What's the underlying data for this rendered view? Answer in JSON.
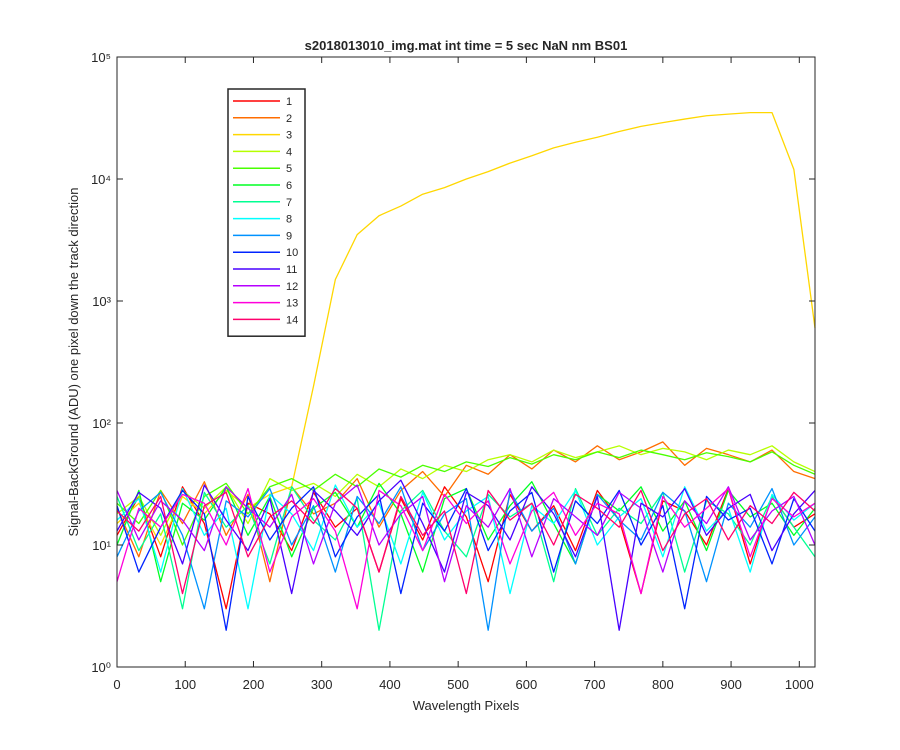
{
  "chart_data": {
    "type": "line",
    "title": "s2018013010_img.mat int time = 5 sec  NaN nm BS01",
    "x_label": "Wavelength Pixels",
    "y_label": "Signal-BackGround (ADU) one pixel down the track direction",
    "y_scale": "log",
    "xlim": [
      0,
      1023
    ],
    "ylim": [
      1,
      100000
    ],
    "xticks": [
      0,
      100,
      200,
      300,
      400,
      500,
      600,
      700,
      800,
      900,
      1000
    ],
    "yticks": [
      {
        "value": 1,
        "label": "10⁰"
      },
      {
        "value": 10,
        "label": "10¹"
      },
      {
        "value": 100,
        "label": "10²"
      },
      {
        "value": 1000,
        "label": "10³"
      },
      {
        "value": 10000,
        "label": "10⁴"
      },
      {
        "value": 100000,
        "label": "10⁵"
      }
    ],
    "legend": "upper left",
    "x": [
      0,
      32,
      64,
      96,
      128,
      160,
      192,
      224,
      256,
      288,
      320,
      352,
      384,
      416,
      448,
      480,
      512,
      544,
      576,
      608,
      640,
      672,
      704,
      736,
      768,
      800,
      832,
      864,
      896,
      928,
      960,
      992,
      1023
    ],
    "series": [
      {
        "name": "1",
        "color": "#ff0000",
        "values": [
          12,
          25,
          8,
          30,
          15,
          3,
          22,
          18,
          9,
          27,
          14,
          20,
          6,
          24,
          11,
          30,
          17,
          5,
          26,
          13,
          21,
          9,
          28,
          16,
          4,
          23,
          19,
          10,
          29,
          7,
          25,
          14,
          18
        ]
      },
      {
        "name": "2",
        "color": "#ff6d00",
        "values": [
          20,
          8,
          28,
          15,
          33,
          12,
          26,
          5,
          30,
          18,
          22,
          35,
          14,
          28,
          40,
          25,
          45,
          38,
          55,
          42,
          60,
          48,
          65,
          50,
          58,
          70,
          45,
          62,
          55,
          48,
          60,
          40,
          35
        ]
      },
      {
        "name": "3",
        "color": "#ffd700",
        "values": [
          15,
          22,
          10,
          25,
          18,
          28,
          20,
          26,
          30,
          200,
          1500,
          3500,
          5000,
          6000,
          7500,
          8500,
          10000,
          11500,
          13500,
          15500,
          18000,
          20000,
          22000,
          24500,
          27000,
          29000,
          31000,
          33000,
          34000,
          35000,
          35000,
          12000,
          600
        ]
      },
      {
        "name": "4",
        "color": "#b6ff00",
        "values": [
          18,
          25,
          12,
          28,
          20,
          30,
          15,
          35,
          28,
          32,
          25,
          38,
          30,
          42,
          35,
          45,
          40,
          50,
          55,
          48,
          60,
          52,
          58,
          65,
          55,
          62,
          58,
          50,
          60,
          55,
          65,
          48,
          40
        ]
      },
      {
        "name": "5",
        "color": "#49ff00",
        "values": [
          22,
          15,
          28,
          10,
          25,
          32,
          18,
          30,
          35,
          28,
          38,
          30,
          42,
          36,
          45,
          40,
          48,
          44,
          52,
          46,
          55,
          50,
          58,
          52,
          60,
          55,
          50,
          57,
          53,
          48,
          58,
          45,
          38
        ]
      },
      {
        "name": "6",
        "color": "#00ff24",
        "values": [
          10,
          28,
          5,
          22,
          16,
          30,
          12,
          25,
          8,
          20,
          27,
          14,
          32,
          18,
          6,
          24,
          29,
          11,
          21,
          33,
          15,
          7,
          26,
          19,
          30,
          13,
          23,
          9,
          28,
          17,
          22,
          12,
          20
        ]
      },
      {
        "name": "7",
        "color": "#00ff92",
        "values": [
          25,
          9,
          18,
          3,
          27,
          14,
          21,
          7,
          30,
          16,
          11,
          24,
          2,
          19,
          28,
          13,
          8,
          26,
          17,
          22,
          5,
          29,
          12,
          20,
          15,
          27,
          6,
          23,
          18,
          10,
          25,
          14,
          8
        ]
      },
      {
        "name": "8",
        "color": "#00ffff",
        "values": [
          16,
          24,
          6,
          29,
          12,
          20,
          3,
          26,
          18,
          9,
          31,
          14,
          22,
          7,
          27,
          11,
          19,
          25,
          4,
          21,
          15,
          28,
          10,
          17,
          24,
          8,
          30,
          13,
          20,
          6,
          26,
          16,
          22
        ]
      },
      {
        "name": "9",
        "color": "#0092ff",
        "values": [
          8,
          19,
          27,
          12,
          3,
          23,
          17,
          29,
          10,
          21,
          6,
          25,
          15,
          30,
          9,
          18,
          24,
          2,
          28,
          13,
          20,
          7,
          26,
          16,
          11,
          27,
          19,
          5,
          22,
          14,
          29,
          10,
          17
        ]
      },
      {
        "name": "10",
        "color": "#0024ff",
        "values": [
          21,
          6,
          14,
          28,
          18,
          2,
          25,
          11,
          20,
          30,
          8,
          17,
          26,
          4,
          22,
          13,
          29,
          9,
          19,
          27,
          6,
          23,
          15,
          28,
          10,
          21,
          3,
          25,
          16,
          20,
          7,
          24,
          13
        ]
      },
      {
        "name": "11",
        "color": "#4900ff",
        "values": [
          13,
          27,
          20,
          7,
          31,
          16,
          9,
          24,
          4,
          28,
          19,
          12,
          23,
          34,
          15,
          6,
          27,
          21,
          11,
          30,
          18,
          8,
          25,
          2,
          22,
          17,
          29,
          12,
          20,
          26,
          9,
          18,
          28
        ]
      },
      {
        "name": "12",
        "color": "#b600ff",
        "values": [
          28,
          11,
          23,
          16,
          9,
          30,
          20,
          14,
          26,
          7,
          22,
          31,
          10,
          18,
          25,
          5,
          21,
          14,
          29,
          8,
          24,
          17,
          12,
          27,
          20,
          6,
          23,
          15,
          30,
          11,
          19,
          25,
          10
        ]
      },
      {
        "name": "13",
        "color": "#ff00db",
        "values": [
          5,
          20,
          14,
          26,
          22,
          10,
          29,
          6,
          17,
          24,
          13,
          3,
          28,
          21,
          9,
          26,
          15,
          23,
          7,
          19,
          27,
          12,
          22,
          18,
          4,
          25,
          14,
          20,
          29,
          8,
          24,
          17,
          22
        ]
      },
      {
        "name": "14",
        "color": "#ff006d",
        "values": [
          19,
          13,
          25,
          4,
          21,
          27,
          8,
          17,
          23,
          15,
          29,
          20,
          6,
          25,
          12,
          19,
          4,
          28,
          16,
          22,
          10,
          26,
          20,
          14,
          28,
          9,
          18,
          24,
          11,
          21,
          15,
          27,
          19
        ]
      }
    ]
  }
}
